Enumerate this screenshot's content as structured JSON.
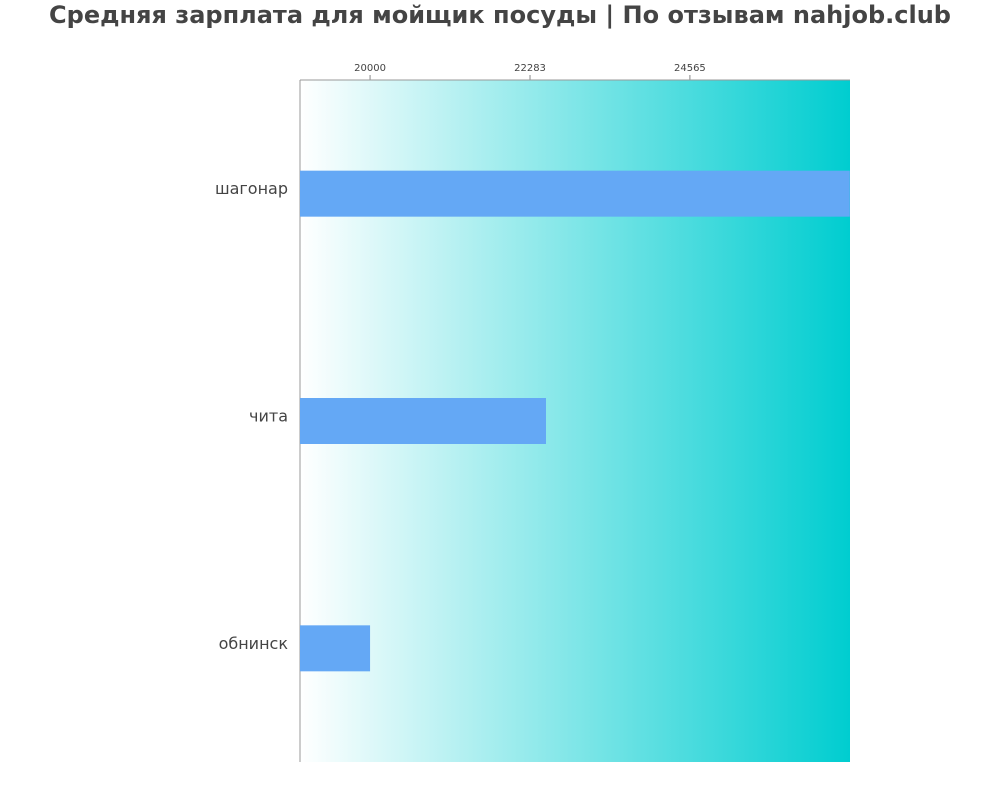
{
  "chart_data": {
    "type": "barh",
    "title": "Средняя зарплата для мойщик посуды | По отзывам nahjob.club",
    "categories": [
      "шагонар",
      "чита",
      "обнинск"
    ],
    "values": [
      26847,
      22511,
      20000
    ],
    "color": "#64a8f5",
    "xlim": [
      19000,
      26850
    ],
    "xticks": [
      20000,
      22283,
      24565
    ]
  }
}
